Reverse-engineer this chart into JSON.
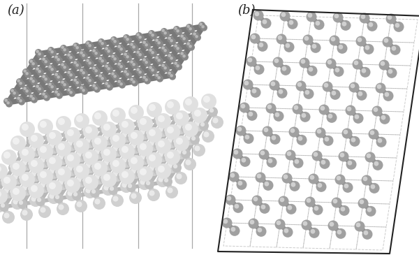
{
  "fig_width": 6.0,
  "fig_height": 3.65,
  "dpi": 100,
  "bg_color": "#ffffff",
  "label_a": "(a)",
  "label_b": "(b)",
  "graphene_atom_color": "#888888",
  "graphene_bond_color": "#787878",
  "mos2_atom_s_color": "#d8d8d8",
  "mos2_atom_mo_color": "#b8b8b8",
  "mos2_bond_color": "#c0c0c0",
  "vline_color": "#999999",
  "outline_color": "#222222"
}
